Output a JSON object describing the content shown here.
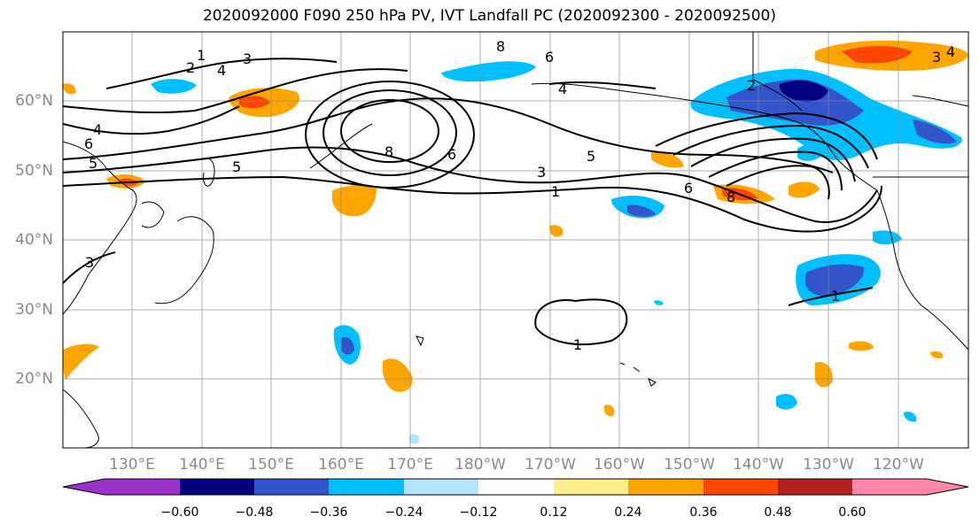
{
  "title": "2020092000 F090 250 hPa PV, IVT Landfall PC (2020092300 - 2020092500)",
  "lon_labels": [
    "130°E",
    "140°E",
    "150°E",
    "160°E",
    "170°E",
    "180°W",
    "170°W",
    "160°W",
    "150°W",
    "140°W",
    "130°W",
    "120°W"
  ],
  "lat_labels": [
    "60°N",
    "50°N",
    "40°N",
    "30°N",
    "20°N"
  ],
  "colorbar": {
    "colors": [
      "#9933cc",
      "#000080",
      "#3355cc",
      "#00bfff",
      "#b3e5ff",
      "#ffffff",
      "#ffee88",
      "#ffa500",
      "#ff4500",
      "#b22222",
      "#ff88aa"
    ],
    "tick_labels": [
      "−0.60",
      "−0.48",
      "−0.36",
      "−0.24",
      "−0.12",
      "0.12",
      "0.24",
      "0.36",
      "0.48",
      "0.60"
    ]
  },
  "contour_labels": [
    "1",
    "2",
    "3",
    "4",
    "5",
    "6",
    "8"
  ]
}
